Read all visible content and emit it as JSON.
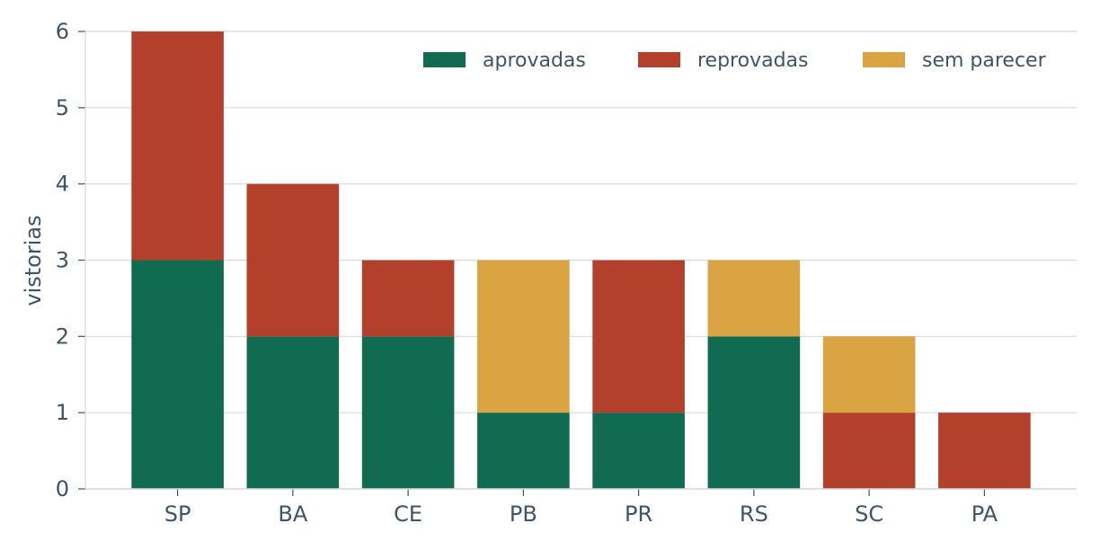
{
  "chart_data": {
    "type": "bar",
    "stacked": true,
    "title": "",
    "xlabel": "",
    "ylabel": "vistorias",
    "ylim": [
      0,
      6
    ],
    "yticks": [
      "0",
      "1",
      "2",
      "3",
      "4",
      "5",
      "6"
    ],
    "grid": "horizontal",
    "legend_position": "top-right",
    "categories": [
      "SP",
      "BA",
      "CE",
      "PB",
      "PR",
      "RS",
      "SC",
      "PA"
    ],
    "series": [
      {
        "name": "aprovadas",
        "color": "#106b50",
        "values": [
          3,
          2,
          2,
          1,
          1,
          2,
          0,
          0
        ]
      },
      {
        "name": "reprovadas",
        "color": "#b3402b",
        "values": [
          3,
          2,
          1,
          0,
          2,
          0,
          1,
          1
        ]
      },
      {
        "name": "sem parecer",
        "color": "#d9a441",
        "values": [
          0,
          0,
          0,
          2,
          0,
          1,
          1,
          0
        ]
      }
    ]
  }
}
